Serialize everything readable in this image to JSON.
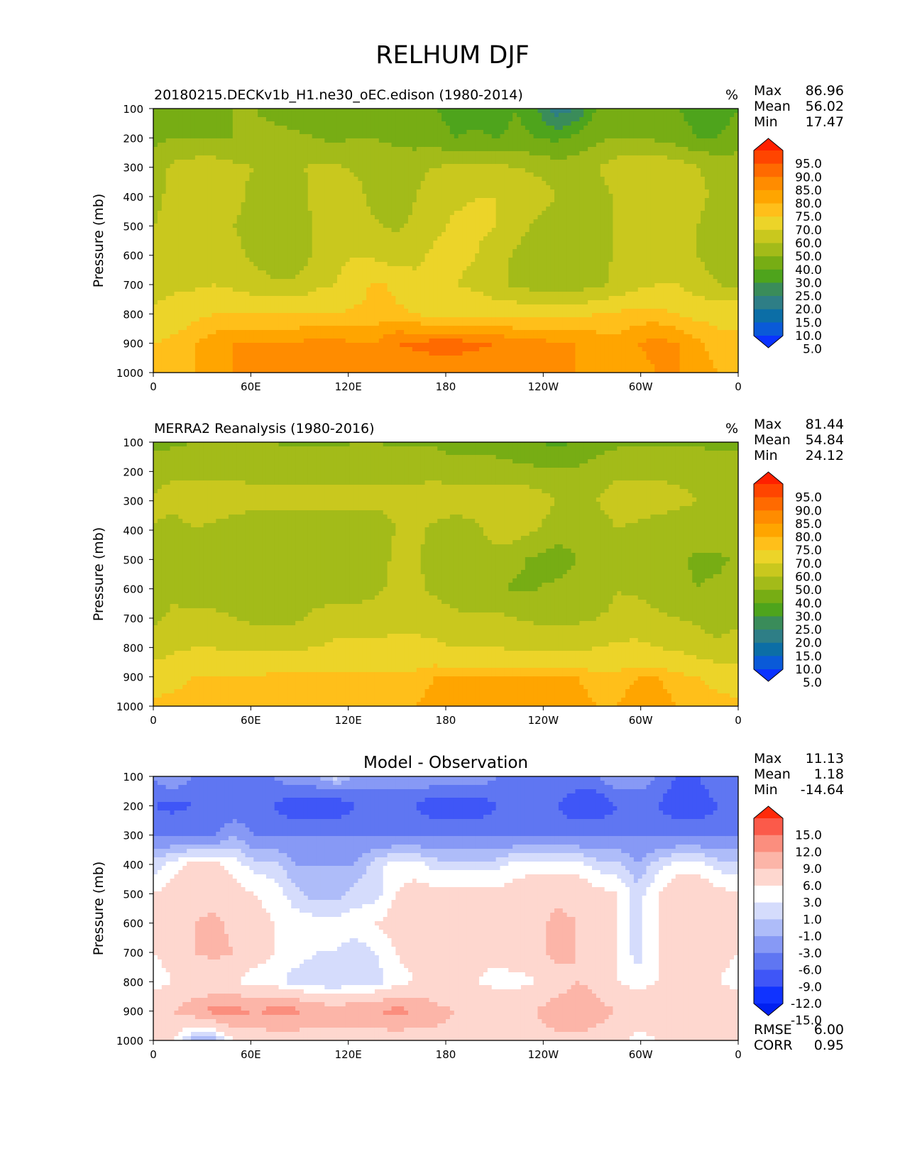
{
  "figure_title": "RELHUM DJF",
  "chart_data": [
    {
      "type": "heatmap",
      "title": "20180215.DECKv1b_H1.ne30_oEC.edison (1980-2014)",
      "units": "%",
      "xlabel": "",
      "ylabel": "Pressure (mb)",
      "xticks": [
        "0",
        "60E",
        "120E",
        "180",
        "120W",
        "60W",
        "0"
      ],
      "yticks": [
        "100",
        "200",
        "300",
        "400",
        "500",
        "600",
        "700",
        "800",
        "900",
        "1000"
      ],
      "ylim": [
        1000,
        100
      ],
      "stats": {
        "max_label": "Max",
        "max": "86.96",
        "mean_label": "Mean",
        "mean": "56.02",
        "min_label": "Min",
        "min": "17.47"
      },
      "colorbar": {
        "labels": [
          "95.0",
          "90.0",
          "85.0",
          "80.0",
          "75.0",
          "70.0",
          "60.0",
          "50.0",
          "40.0",
          "30.0",
          "25.0",
          "20.0",
          "15.0",
          "10.0",
          "5.0"
        ],
        "colors": [
          "#ff2000",
          "#ff4500",
          "#ff6a00",
          "#ff8c00",
          "#ffa500",
          "#ffbf1a",
          "#ecd429",
          "#c9c81e",
          "#a3bb19",
          "#77ad14",
          "#4ea41c",
          "#3a8c5a",
          "#2e7e86",
          "#0c6ea6",
          "#0a5ad8",
          "#0a33ff"
        ]
      },
      "grid": [
        [
          30,
          35,
          35,
          38,
          40,
          40,
          38,
          35,
          32,
          35,
          38,
          35,
          30,
          30,
          30,
          25,
          25,
          25,
          30,
          25,
          17,
          20,
          30,
          35,
          38,
          35,
          30,
          25,
          25,
          30
        ],
        [
          38,
          40,
          40,
          40,
          40,
          42,
          42,
          42,
          40,
          38,
          40,
          40,
          38,
          35,
          35,
          30,
          32,
          30,
          32,
          30,
          28,
          32,
          38,
          40,
          40,
          38,
          35,
          30,
          30,
          35
        ],
        [
          45,
          52,
          55,
          55,
          52,
          50,
          48,
          48,
          52,
          52,
          48,
          45,
          45,
          48,
          50,
          52,
          52,
          52,
          50,
          48,
          45,
          45,
          50,
          55,
          58,
          58,
          55,
          50,
          48,
          45
        ],
        [
          48,
          52,
          55,
          55,
          52,
          48,
          45,
          45,
          52,
          58,
          55,
          45,
          45,
          50,
          55,
          58,
          60,
          60,
          58,
          55,
          50,
          45,
          45,
          52,
          58,
          60,
          58,
          52,
          48,
          45
        ],
        [
          50,
          52,
          55,
          55,
          50,
          48,
          42,
          42,
          52,
          58,
          58,
          52,
          48,
          52,
          58,
          62,
          62,
          60,
          55,
          48,
          42,
          42,
          45,
          52,
          58,
          60,
          58,
          50,
          45,
          45
        ],
        [
          52,
          55,
          55,
          55,
          52,
          48,
          42,
          42,
          52,
          58,
          60,
          58,
          55,
          58,
          62,
          62,
          60,
          55,
          48,
          42,
          40,
          40,
          45,
          52,
          58,
          58,
          55,
          50,
          45,
          45
        ],
        [
          55,
          58,
          58,
          60,
          58,
          55,
          52,
          52,
          58,
          60,
          65,
          72,
          68,
          62,
          62,
          60,
          58,
          52,
          48,
          45,
          45,
          45,
          48,
          52,
          58,
          60,
          60,
          55,
          50,
          48
        ],
        [
          62,
          65,
          68,
          70,
          70,
          70,
          70,
          70,
          70,
          70,
          72,
          72,
          72,
          70,
          68,
          68,
          68,
          68,
          68,
          68,
          68,
          68,
          70,
          72,
          72,
          72,
          70,
          68,
          68,
          68
        ],
        [
          70,
          72,
          75,
          78,
          80,
          80,
          80,
          80,
          82,
          82,
          80,
          80,
          85,
          86,
          87,
          87,
          86,
          85,
          82,
          82,
          80,
          80,
          78,
          76,
          80,
          82,
          80,
          76,
          72,
          72
        ],
        [
          75,
          75,
          75,
          78,
          80,
          80,
          80,
          80,
          82,
          82,
          80,
          80,
          82,
          82,
          82,
          82,
          82,
          82,
          82,
          82,
          80,
          80,
          80,
          78,
          78,
          80,
          80,
          78,
          75,
          75
        ]
      ]
    },
    {
      "type": "heatmap",
      "title": "MERRA2 Reanalysis (1980-2016)",
      "units": "%",
      "xlabel": "",
      "ylabel": "Pressure (mb)",
      "xticks": [
        "0",
        "60E",
        "120E",
        "180",
        "120W",
        "60W",
        "0"
      ],
      "yticks": [
        "100",
        "200",
        "300",
        "400",
        "500",
        "600",
        "700",
        "800",
        "900",
        "1000"
      ],
      "ylim": [
        1000,
        100
      ],
      "stats": {
        "max_label": "Max",
        "max": "81.44",
        "mean_label": "Mean",
        "mean": "54.84",
        "min_label": "Min",
        "min": "24.12"
      },
      "colorbar": {
        "labels": [
          "95.0",
          "90.0",
          "85.0",
          "80.0",
          "75.0",
          "70.0",
          "60.0",
          "50.0",
          "40.0",
          "30.0",
          "25.0",
          "20.0",
          "15.0",
          "10.0",
          "5.0"
        ],
        "colors": [
          "#ff2000",
          "#ff4500",
          "#ff6a00",
          "#ff8c00",
          "#ffa500",
          "#ffbf1a",
          "#ecd429",
          "#c9c81e",
          "#a3bb19",
          "#77ad14",
          "#4ea41c",
          "#3a8c5a",
          "#2e7e86",
          "#0c6ea6",
          "#0a5ad8",
          "#0a33ff"
        ]
      },
      "grid": [
        [
          38,
          38,
          40,
          40,
          40,
          40,
          40,
          38,
          38,
          38,
          40,
          40,
          38,
          38,
          38,
          35,
          35,
          35,
          30,
          30,
          28,
          30,
          35,
          38,
          38,
          38,
          38,
          38,
          38,
          38
        ],
        [
          45,
          48,
          48,
          48,
          48,
          48,
          48,
          48,
          48,
          48,
          48,
          48,
          48,
          48,
          48,
          45,
          45,
          45,
          45,
          42,
          42,
          42,
          45,
          48,
          48,
          48,
          48,
          48,
          45,
          45
        ],
        [
          52,
          55,
          55,
          55,
          55,
          52,
          52,
          52,
          52,
          52,
          52,
          52,
          52,
          52,
          55,
          55,
          55,
          58,
          58,
          55,
          50,
          48,
          50,
          55,
          55,
          55,
          52,
          50,
          50,
          50
        ],
        [
          50,
          45,
          50,
          48,
          45,
          45,
          45,
          45,
          45,
          45,
          45,
          45,
          50,
          52,
          48,
          45,
          48,
          55,
          55,
          50,
          45,
          42,
          45,
          50,
          48,
          45,
          45,
          45,
          45,
          45
        ],
        [
          45,
          42,
          45,
          45,
          45,
          42,
          42,
          42,
          45,
          45,
          45,
          45,
          52,
          52,
          45,
          42,
          42,
          45,
          42,
          38,
          35,
          40,
          42,
          50,
          48,
          45,
          42,
          38,
          38,
          42
        ],
        [
          45,
          48,
          45,
          45,
          45,
          42,
          42,
          42,
          45,
          45,
          45,
          48,
          52,
          52,
          48,
          45,
          42,
          42,
          38,
          40,
          42,
          45,
          45,
          50,
          48,
          45,
          42,
          40,
          42,
          45
        ],
        [
          48,
          52,
          52,
          52,
          50,
          48,
          48,
          48,
          52,
          55,
          55,
          55,
          58,
          58,
          55,
          52,
          52,
          52,
          50,
          48,
          48,
          48,
          50,
          52,
          55,
          52,
          50,
          48,
          45,
          48
        ],
        [
          55,
          58,
          60,
          60,
          58,
          58,
          58,
          58,
          60,
          62,
          62,
          62,
          62,
          62,
          62,
          60,
          60,
          60,
          58,
          58,
          58,
          58,
          60,
          62,
          62,
          60,
          58,
          55,
          52,
          55
        ],
        [
          65,
          68,
          70,
          70,
          70,
          70,
          72,
          72,
          72,
          72,
          72,
          72,
          72,
          72,
          75,
          75,
          75,
          75,
          75,
          75,
          75,
          75,
          72,
          72,
          75,
          75,
          72,
          70,
          68,
          65
        ],
        [
          72,
          72,
          72,
          72,
          72,
          72,
          72,
          75,
          75,
          75,
          72,
          72,
          75,
          75,
          78,
          78,
          78,
          78,
          78,
          78,
          78,
          78,
          75,
          75,
          78,
          78,
          75,
          72,
          72,
          72
        ]
      ]
    },
    {
      "type": "heatmap",
      "title": "Model - Observation",
      "units": "",
      "xlabel": "",
      "ylabel": "Pressure (mb)",
      "xticks": [
        "0",
        "60E",
        "120E",
        "180",
        "120W",
        "60W",
        "0"
      ],
      "yticks": [
        "100",
        "200",
        "300",
        "400",
        "500",
        "600",
        "700",
        "800",
        "900",
        "1000"
      ],
      "ylim": [
        1000,
        100
      ],
      "stats": {
        "max_label": "Max",
        "max": "11.13",
        "mean_label": "Mean",
        "mean": "1.18",
        "min_label": "Min",
        "min": "-14.64"
      },
      "extra_stats": {
        "rmse_label": "RMSE",
        "rmse": "6.00",
        "corr_label": "CORR",
        "corr": "0.95"
      },
      "colorbar": {
        "labels": [
          "15.0",
          "12.0",
          "9.0",
          "6.0",
          "3.0",
          "1.0",
          "-1.0",
          "-3.0",
          "-6.0",
          "-9.0",
          "-12.0",
          "-15.0"
        ],
        "colors": [
          "#ff2a0a",
          "#fb5a4a",
          "#fb8e7e",
          "#fcb5a8",
          "#fed7cf",
          "#ffffff",
          "#d5dcfc",
          "#aebcf9",
          "#8799f5",
          "#5f76f2",
          "#3f56f7",
          "#1033ff",
          "#0020f0"
        ]
      },
      "grid": [
        [
          -6,
          -3,
          -6,
          -6,
          -6,
          -6,
          -6,
          -3,
          -3,
          0,
          -3,
          -3,
          -3,
          -3,
          -3,
          -3,
          -3,
          -6,
          -6,
          -6,
          -6,
          -6,
          -6,
          -3,
          -3,
          -6,
          -9,
          -9,
          -6,
          -6
        ],
        [
          -9,
          -10,
          -9,
          -9,
          -9,
          -9,
          -9,
          -12,
          -12,
          -12,
          -9,
          -9,
          -9,
          -9,
          -12,
          -12,
          -12,
          -9,
          -9,
          -9,
          -9,
          -12,
          -12,
          -9,
          -9,
          -9,
          -12,
          -12,
          -9,
          -9
        ],
        [
          -6,
          -6,
          -6,
          -6,
          -3,
          -6,
          -6,
          -6,
          -6,
          -6,
          -6,
          -6,
          -6,
          -6,
          -6,
          -6,
          -6,
          -6,
          -6,
          -6,
          -6,
          -6,
          -6,
          -6,
          -6,
          -6,
          -6,
          -6,
          -6,
          -6
        ],
        [
          0,
          2,
          4,
          4,
          2,
          0,
          0,
          -3,
          -3,
          -3,
          -3,
          0,
          2,
          2,
          0,
          0,
          0,
          0,
          2,
          2,
          2,
          2,
          0,
          0,
          -3,
          0,
          2,
          2,
          0,
          0
        ],
        [
          3,
          4,
          5,
          4,
          4,
          3,
          2,
          0,
          -2,
          -2,
          0,
          0,
          3,
          4,
          4,
          4,
          4,
          4,
          4,
          5,
          5,
          5,
          4,
          3,
          0,
          3,
          5,
          5,
          4,
          3
        ],
        [
          3,
          4,
          6,
          7,
          5,
          4,
          3,
          2,
          2,
          2,
          2,
          3,
          4,
          4,
          4,
          4,
          4,
          4,
          5,
          5,
          7,
          6,
          4,
          3,
          0,
          3,
          4,
          6,
          5,
          3
        ],
        [
          3,
          4,
          6,
          7,
          6,
          4,
          3,
          2,
          1,
          1,
          0,
          1,
          3,
          4,
          4,
          4,
          4,
          4,
          5,
          5,
          7,
          6,
          4,
          3,
          0,
          3,
          4,
          6,
          4,
          3
        ],
        [
          2,
          3,
          3,
          3,
          3,
          2,
          2,
          0,
          0,
          -1,
          0,
          0,
          2,
          3,
          3,
          3,
          3,
          2,
          2,
          3,
          4,
          6,
          5,
          3,
          2,
          3,
          3,
          3,
          3,
          2
        ],
        [
          6,
          6,
          8,
          10,
          10,
          9,
          10,
          10,
          8,
          8,
          8,
          9,
          10,
          9,
          7,
          6,
          6,
          6,
          6,
          6,
          8,
          9,
          7,
          6,
          5,
          6,
          6,
          5,
          6,
          6
        ],
        [
          4,
          3,
          -2,
          -2,
          3,
          4,
          4,
          4,
          4,
          4,
          4,
          4,
          4,
          4,
          5,
          5,
          5,
          5,
          5,
          5,
          5,
          5,
          5,
          4,
          2,
          3,
          4,
          4,
          3,
          3
        ]
      ]
    }
  ]
}
